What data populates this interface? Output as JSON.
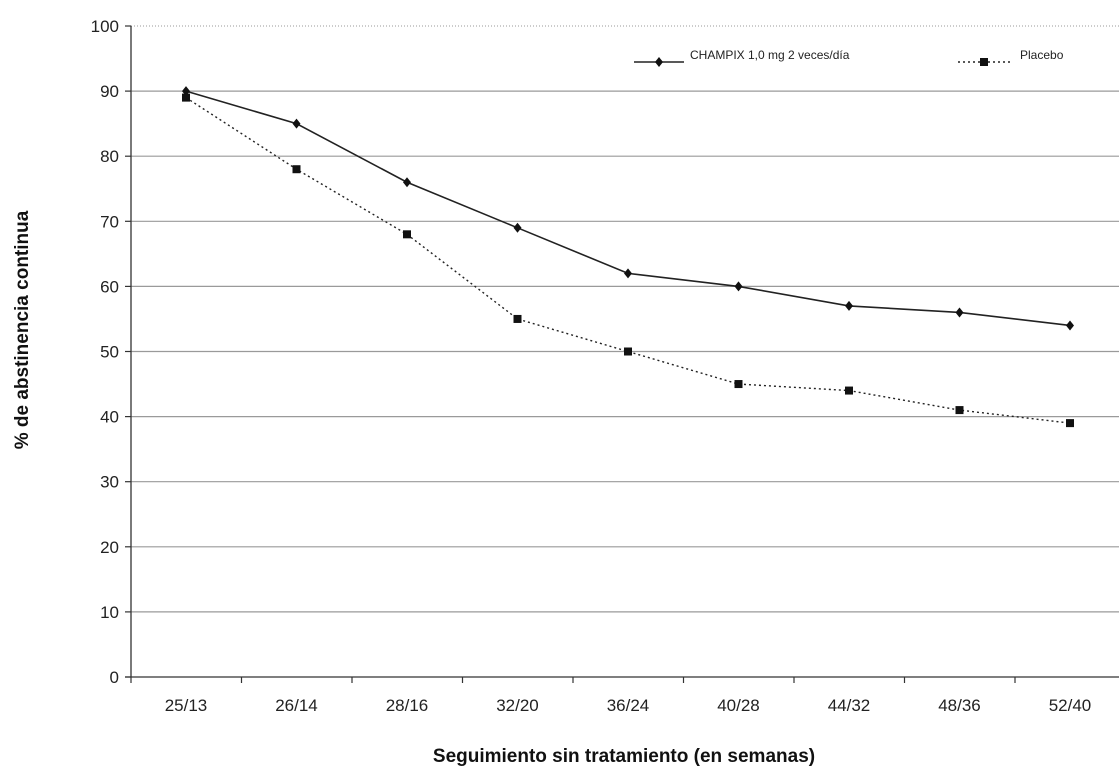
{
  "chart_data": {
    "type": "line",
    "title": "",
    "xlabel": "Seguimiento sin tratamiento (en semanas)",
    "ylabel": "% de abstinencia continua",
    "categories": [
      "25/13",
      "26/14",
      "28/16",
      "32/20",
      "36/24",
      "40/28",
      "44/32",
      "48/36",
      "52/40"
    ],
    "ylim": [
      0,
      100
    ],
    "yticks": [
      0,
      10,
      20,
      30,
      40,
      50,
      60,
      70,
      80,
      90,
      100
    ],
    "grid": true,
    "legend_position": "top-right",
    "series": [
      {
        "name": "CHAMPIX 1,0 mg 2 veces/día",
        "marker": "diamond",
        "line_style": "solid",
        "color": "#222222",
        "values": [
          90,
          85,
          76,
          69,
          62,
          60,
          57,
          56,
          54
        ]
      },
      {
        "name": "Placebo",
        "marker": "square",
        "line_style": "dotted",
        "color": "#222222",
        "values": [
          89,
          78,
          68,
          55,
          50,
          45,
          44,
          41,
          39
        ]
      }
    ]
  }
}
